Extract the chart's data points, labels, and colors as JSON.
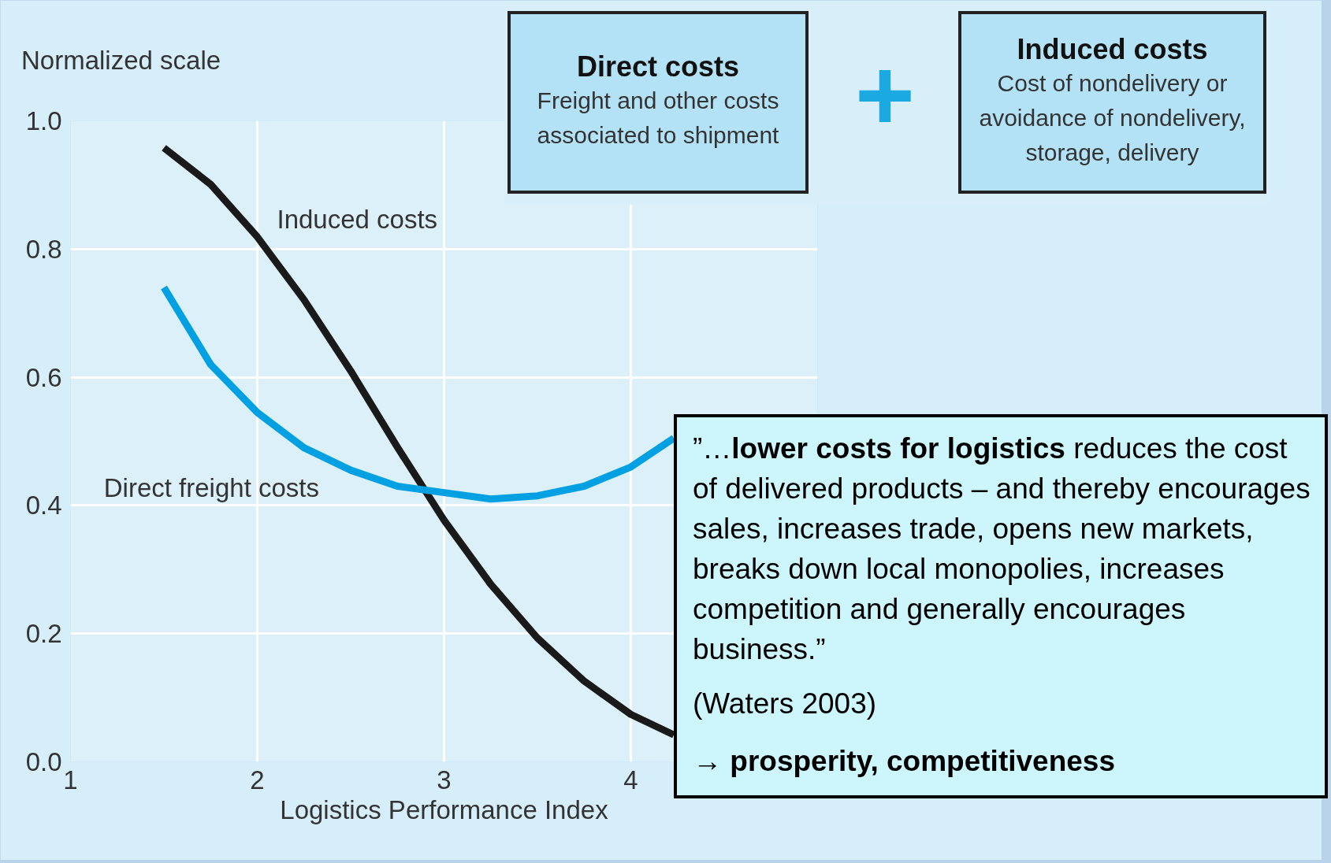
{
  "chart_data": {
    "type": "line",
    "xlabel": "Logistics Performance Index",
    "ylabel": "Normalized scale",
    "xlim": [
      1,
      5
    ],
    "ylim": [
      0,
      1.0
    ],
    "xticks": [
      1,
      2,
      3,
      4,
      {
        "value": 5,
        "label": null
      }
    ],
    "yticks": [
      {
        "value": 0,
        "label": "0.0"
      },
      {
        "value": 0.2,
        "label": "0.2"
      },
      {
        "value": 0.4,
        "label": "0.4"
      },
      {
        "value": 0.6,
        "label": "0.6"
      },
      {
        "value": 0.8,
        "label": "0.8"
      },
      {
        "value": 1.0,
        "label": "1.0"
      }
    ],
    "grid": true,
    "line_style": "solid",
    "series": [
      {
        "name": "Induced costs",
        "color": "#1a1a1a",
        "x": [
          1.5,
          1.75,
          2.0,
          2.25,
          2.5,
          2.75,
          3.0,
          3.25,
          3.5,
          3.75,
          4.0,
          4.23
        ],
        "values": [
          0.958,
          0.901,
          0.819,
          0.721,
          0.61,
          0.491,
          0.377,
          0.277,
          0.193,
          0.126,
          0.074,
          0.042
        ]
      },
      {
        "name": "Direct freight costs",
        "color": "#00a0e3",
        "x": [
          1.5,
          1.75,
          2.0,
          2.25,
          2.5,
          2.75,
          3.0,
          3.25,
          3.5,
          3.75,
          4.0,
          4.23
        ],
        "values": [
          0.74,
          0.62,
          0.545,
          0.49,
          0.455,
          0.43,
          0.42,
          0.41,
          0.415,
          0.43,
          0.46,
          0.505
        ]
      }
    ],
    "annotations": [
      "Direct costs",
      "Freight and other costs associated to shipment",
      "+",
      "Induced costs",
      "Cost of nondelivery or avoidance of nondelivery, storage, delivery",
      "”…",
      "lower costs for logistics",
      "reduces the cost of delivered products – and thereby encourages sales, increases trade, opens new markets, breaks down local monopolies, increases competition and generally encourages business.”",
      "(Waters 2003)",
      "→ prosperity, competitiveness"
    ]
  }
}
